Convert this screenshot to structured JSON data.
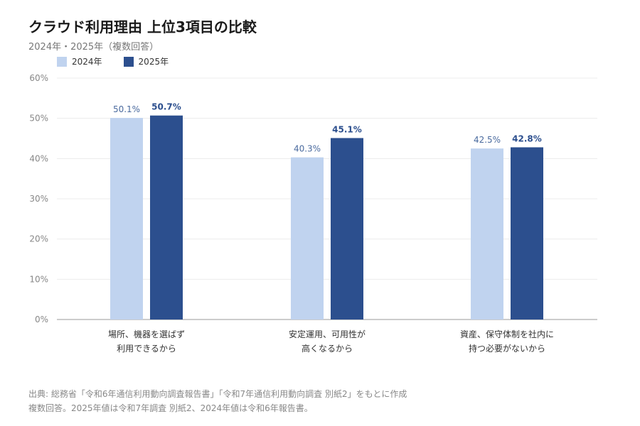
{
  "header": {
    "title": "クラウド利用理由 上位3項目の比較",
    "subtitle": "2024年・2025年（複数回答）"
  },
  "footer": {
    "source": "出典: 総務省「令和6年通信利用動向調査報告書」「令和7年通信利用動向調査 別紙2」をもとに作成",
    "note": "複数回答。2025年値は令和7年調査 別紙2、2024年値は令和6年報告書。"
  },
  "chart_data": {
    "type": "bar",
    "categories": [
      [
        "場所、機器を選ばず",
        "利用できるから"
      ],
      [
        "安定運用、可用性が",
        "高くなるから"
      ],
      [
        "資産、保守体制を社内に",
        "持つ必要がないから"
      ]
    ],
    "series": [
      {
        "name": "2024年",
        "color": "#c0d3ef",
        "label_color": "#4a6a9e",
        "label_weight": "normal",
        "values": [
          50.1,
          40.3,
          42.5
        ]
      },
      {
        "name": "2025年",
        "color": "#2c4f8e",
        "label_color": "#2c4f8e",
        "label_weight": "bold",
        "values": [
          50.7,
          45.1,
          42.8
        ]
      }
    ],
    "ylim": [
      0,
      60
    ],
    "yticks": [
      0,
      10,
      20,
      30,
      40,
      50,
      60
    ],
    "ytick_suffix": "%",
    "value_suffix": "%",
    "grid": true,
    "legend_position": "top-left"
  }
}
